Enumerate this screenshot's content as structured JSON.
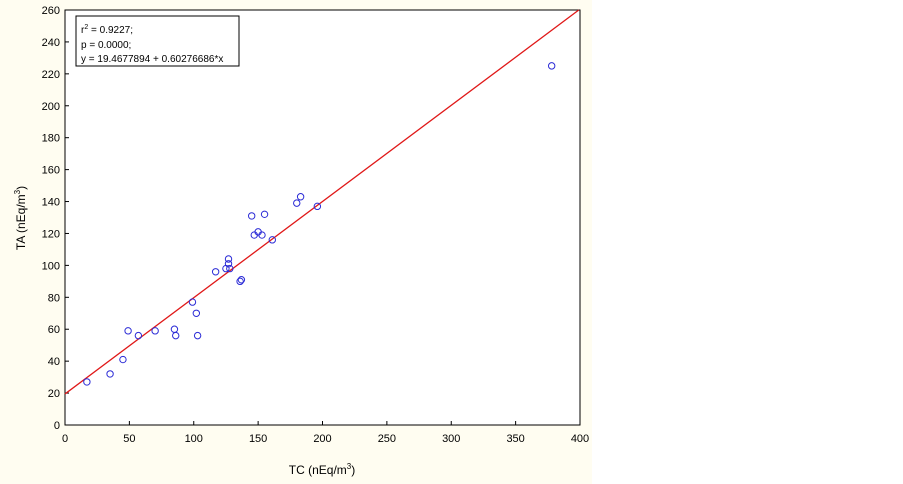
{
  "chart_data": {
    "type": "scatter",
    "xlabel": "TC (nEq/m",
    "ylabel": "TA (nEq/m",
    "unit_superscript": "3",
    "unit_close": ")",
    "xlim": [
      0,
      400
    ],
    "ylim": [
      0,
      260
    ],
    "x_ticks": [
      0,
      50,
      100,
      150,
      200,
      250,
      300,
      350,
      400
    ],
    "y_ticks": [
      0,
      20,
      40,
      60,
      80,
      100,
      120,
      140,
      160,
      180,
      200,
      220,
      240,
      260
    ],
    "grid": false,
    "stats": {
      "r2_prefix": "r",
      "r2_sup": "2",
      "r2_value": " = 0.9227;",
      "p_line": "p = 0.0000;",
      "equation": "y = 19.4677894 + 0.60276686*x"
    },
    "fit": {
      "intercept": 19.4677894,
      "slope": 0.60276686
    },
    "marker_color": "#2b2bd6",
    "line_color": "#e01818",
    "points": [
      {
        "x": 17,
        "y": 27
      },
      {
        "x": 35,
        "y": 32
      },
      {
        "x": 45,
        "y": 41
      },
      {
        "x": 49,
        "y": 59
      },
      {
        "x": 57,
        "y": 56
      },
      {
        "x": 70,
        "y": 59
      },
      {
        "x": 85,
        "y": 60
      },
      {
        "x": 86,
        "y": 56
      },
      {
        "x": 99,
        "y": 77
      },
      {
        "x": 102,
        "y": 70
      },
      {
        "x": 103,
        "y": 56
      },
      {
        "x": 117,
        "y": 96
      },
      {
        "x": 125,
        "y": 98
      },
      {
        "x": 127,
        "y": 104
      },
      {
        "x": 127,
        "y": 101
      },
      {
        "x": 128,
        "y": 98
      },
      {
        "x": 136,
        "y": 90
      },
      {
        "x": 137,
        "y": 91
      },
      {
        "x": 145,
        "y": 131
      },
      {
        "x": 147,
        "y": 119
      },
      {
        "x": 150,
        "y": 121
      },
      {
        "x": 153,
        "y": 119
      },
      {
        "x": 155,
        "y": 132
      },
      {
        "x": 161,
        "y": 116
      },
      {
        "x": 180,
        "y": 139
      },
      {
        "x": 183,
        "y": 143
      },
      {
        "x": 196,
        "y": 137
      },
      {
        "x": 378,
        "y": 225
      }
    ]
  }
}
